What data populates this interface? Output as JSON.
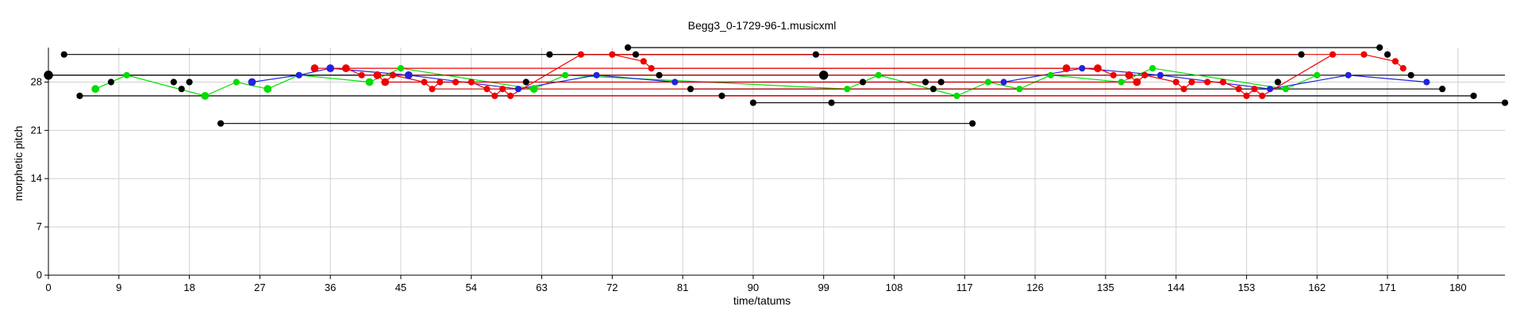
{
  "chart_data": {
    "type": "scatter",
    "title": "Begg3_0-1729-96-1.musicxml",
    "xlabel": "time/tatums",
    "ylabel": "morphetic pitch",
    "xlim": [
      0,
      186
    ],
    "ylim": [
      0,
      33
    ],
    "x_ticks": [
      "0",
      "9",
      "18",
      "27",
      "36",
      "45",
      "54",
      "63",
      "72",
      "81",
      "90",
      "99",
      "108",
      "117",
      "126",
      "135",
      "144",
      "153",
      "162",
      "171",
      "180"
    ],
    "y_ticks": [
      "0",
      "7",
      "14",
      "21",
      "28"
    ],
    "grid": true,
    "series": [
      {
        "color": "#000000",
        "connect": false,
        "points": [
          [
            0,
            29,
            7
          ],
          [
            2,
            32,
            5
          ],
          [
            4,
            26,
            5
          ],
          [
            8,
            28,
            5
          ],
          [
            16,
            28,
            5
          ],
          [
            17,
            27,
            5
          ],
          [
            18,
            28,
            5
          ],
          [
            22,
            22,
            5
          ],
          [
            61,
            28,
            5
          ],
          [
            64,
            32,
            5
          ],
          [
            74,
            33,
            5
          ],
          [
            75,
            32,
            5
          ],
          [
            78,
            29,
            5
          ],
          [
            82,
            27,
            5
          ],
          [
            86,
            26,
            5
          ],
          [
            90,
            25,
            5
          ],
          [
            98,
            32,
            5
          ],
          [
            99,
            29,
            7
          ],
          [
            100,
            25,
            5
          ],
          [
            104,
            28,
            5
          ],
          [
            112,
            28,
            5
          ],
          [
            113,
            27,
            5
          ],
          [
            114,
            28,
            5
          ],
          [
            118,
            22,
            5
          ],
          [
            157,
            28,
            5
          ],
          [
            160,
            32,
            5
          ],
          [
            170,
            33,
            5
          ],
          [
            171,
            32,
            5
          ],
          [
            174,
            29,
            5
          ],
          [
            178,
            27,
            5
          ],
          [
            182,
            26,
            5
          ],
          [
            186,
            25,
            5
          ]
        ]
      },
      {
        "color": "#000000",
        "connect": true,
        "points": [
          [
            2,
            32
          ],
          [
            98,
            32
          ]
        ]
      },
      {
        "color": "#000000",
        "connect": true,
        "points": [
          [
            0,
            29
          ],
          [
            99,
            29
          ]
        ]
      },
      {
        "color": "#000000",
        "connect": true,
        "points": [
          [
            4,
            26
          ],
          [
            100,
            26
          ]
        ]
      },
      {
        "color": "#000000",
        "connect": true,
        "points": [
          [
            22,
            22
          ],
          [
            118,
            22
          ]
        ]
      },
      {
        "color": "#000000",
        "connect": true,
        "points": [
          [
            74,
            33
          ],
          [
            170,
            33
          ]
        ]
      },
      {
        "color": "#000000",
        "connect": true,
        "points": [
          [
            64,
            32
          ],
          [
            160,
            32
          ]
        ]
      },
      {
        "color": "#000000",
        "connect": true,
        "points": [
          [
            82,
            27
          ],
          [
            178,
            27
          ]
        ]
      },
      {
        "color": "#000000",
        "connect": true,
        "points": [
          [
            86,
            26
          ],
          [
            182,
            26
          ]
        ]
      },
      {
        "color": "#000000",
        "connect": true,
        "points": [
          [
            90,
            25
          ],
          [
            186,
            25
          ]
        ]
      },
      {
        "color": "#000000",
        "connect": true,
        "points": [
          [
            0,
            29
          ],
          [
            186,
            29
          ]
        ]
      },
      {
        "color": "#00dd00",
        "connect": true,
        "points": [
          [
            6,
            27,
            6
          ],
          [
            10,
            29,
            5
          ],
          [
            20,
            26,
            6
          ],
          [
            24,
            28,
            5
          ],
          [
            28,
            27,
            6
          ],
          [
            32,
            29,
            5
          ],
          [
            41,
            28,
            6
          ],
          [
            45,
            30,
            5
          ],
          [
            62,
            27,
            6
          ],
          [
            66,
            29,
            5
          ],
          [
            102,
            27,
            5
          ],
          [
            106,
            29,
            5
          ],
          [
            116,
            26,
            5
          ],
          [
            120,
            28,
            5
          ],
          [
            124,
            27,
            5
          ],
          [
            128,
            29,
            5
          ],
          [
            137,
            28,
            5
          ],
          [
            141,
            30,
            5
          ],
          [
            158,
            27,
            5
          ],
          [
            162,
            29,
            5
          ]
        ]
      },
      {
        "color": "#2222dd",
        "connect": true,
        "points": [
          [
            26,
            28,
            6
          ],
          [
            32,
            29,
            5
          ],
          [
            36,
            30,
            6
          ],
          [
            46,
            29,
            6
          ],
          [
            60,
            27,
            5
          ],
          [
            70,
            29,
            5
          ],
          [
            80,
            28,
            5
          ],
          [
            122,
            28,
            5
          ],
          [
            132,
            30,
            5
          ],
          [
            142,
            29,
            5
          ],
          [
            156,
            27,
            5
          ],
          [
            166,
            29,
            5
          ],
          [
            176,
            28,
            5
          ]
        ]
      },
      {
        "color": "#ee0000",
        "connect": true,
        "points": [
          [
            34,
            30,
            6
          ],
          [
            38,
            30,
            6
          ],
          [
            40,
            29,
            5
          ],
          [
            42,
            29,
            6
          ],
          [
            43,
            28,
            6
          ],
          [
            44,
            29,
            5
          ],
          [
            48,
            28,
            5
          ],
          [
            49,
            27,
            5
          ],
          [
            50,
            28,
            5
          ],
          [
            52,
            28,
            5
          ],
          [
            54,
            28,
            5
          ],
          [
            56,
            27,
            5
          ],
          [
            57,
            26,
            5
          ],
          [
            58,
            27,
            5
          ],
          [
            59,
            26,
            5
          ],
          [
            68,
            32,
            5
          ],
          [
            72,
            32,
            5
          ],
          [
            76,
            31,
            5
          ],
          [
            77,
            30,
            5
          ],
          [
            130,
            30,
            6
          ],
          [
            134,
            30,
            6
          ],
          [
            136,
            29,
            5
          ],
          [
            138,
            29,
            6
          ],
          [
            139,
            28,
            6
          ],
          [
            140,
            29,
            5
          ],
          [
            144,
            28,
            5
          ],
          [
            145,
            27,
            5
          ],
          [
            146,
            28,
            5
          ],
          [
            148,
            28,
            5
          ],
          [
            150,
            28,
            5
          ],
          [
            152,
            27,
            5
          ],
          [
            153,
            26,
            5
          ],
          [
            154,
            27,
            5
          ],
          [
            155,
            26,
            5
          ],
          [
            164,
            32,
            5
          ],
          [
            168,
            32,
            5
          ],
          [
            172,
            31,
            5
          ],
          [
            173,
            30,
            5
          ]
        ]
      },
      {
        "color": "#cc0000",
        "connect": true,
        "points": [
          [
            40,
            29
          ],
          [
            136,
            29
          ]
        ]
      },
      {
        "color": "#cc0000",
        "connect": true,
        "points": [
          [
            43,
            28
          ],
          [
            139,
            28
          ]
        ]
      },
      {
        "color": "#cc0000",
        "connect": true,
        "points": [
          [
            49,
            27
          ],
          [
            145,
            27
          ]
        ]
      },
      {
        "color": "#cc0000",
        "connect": true,
        "points": [
          [
            59,
            26
          ],
          [
            155,
            26
          ]
        ]
      },
      {
        "color": "#ee0000",
        "connect": true,
        "points": [
          [
            38,
            30
          ],
          [
            130,
            30
          ]
        ]
      },
      {
        "color": "#ee0000",
        "connect": true,
        "points": [
          [
            72,
            32
          ],
          [
            164,
            32
          ]
        ]
      }
    ]
  }
}
